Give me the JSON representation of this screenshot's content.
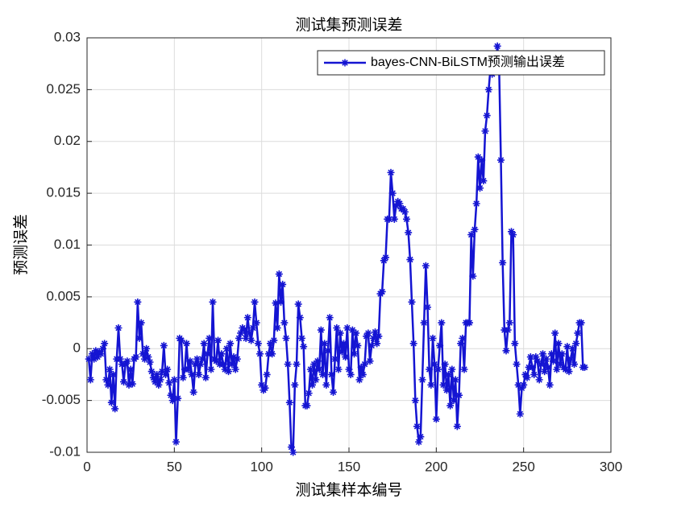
{
  "chart_data": {
    "type": "line",
    "title": "测试集预测误差",
    "xlabel": "测试集样本编号",
    "ylabel": "预测误差",
    "xlim": [
      0,
      300
    ],
    "xticks": [
      0,
      50,
      100,
      150,
      200,
      250,
      300
    ],
    "ylim": [
      -0.01,
      0.03
    ],
    "yticks": [
      -0.01,
      -0.005,
      0,
      0.005,
      0.01,
      0.015,
      0.02,
      0.025,
      0.03
    ],
    "grid": true,
    "legend": "upper right",
    "x": [
      1,
      2,
      3,
      4,
      5,
      6,
      7,
      8,
      9,
      10,
      11,
      12,
      13,
      14,
      15,
      16,
      17,
      18,
      19,
      20,
      21,
      22,
      23,
      24,
      25,
      26,
      27,
      28,
      29,
      30,
      31,
      32,
      33,
      34,
      35,
      36,
      37,
      38,
      39,
      40,
      41,
      42,
      43,
      44,
      45,
      46,
      47,
      48,
      49,
      50,
      51,
      52,
      53,
      54,
      55,
      56,
      57,
      58,
      59,
      60,
      61,
      62,
      63,
      64,
      65,
      66,
      67,
      68,
      69,
      70,
      71,
      72,
      73,
      74,
      75,
      76,
      77,
      78,
      79,
      80,
      81,
      82,
      83,
      84,
      85,
      86,
      87,
      88,
      89,
      90,
      91,
      92,
      93,
      94,
      95,
      96,
      97,
      98,
      99,
      100,
      101,
      102,
      103,
      104,
      105,
      106,
      107,
      108,
      109,
      110,
      111,
      112,
      113,
      114,
      115,
      116,
      117,
      118,
      119,
      120,
      121,
      122,
      123,
      124,
      125,
      126,
      127,
      128,
      129,
      130,
      131,
      132,
      133,
      134,
      135,
      136,
      137,
      138,
      139,
      140,
      141,
      142,
      143,
      144,
      145,
      146,
      147,
      148,
      149,
      150,
      151,
      152,
      153,
      154,
      155,
      156,
      157,
      158,
      159,
      160,
      161,
      162,
      163,
      164,
      165,
      166,
      167,
      168,
      169,
      170,
      171,
      172,
      173,
      174,
      175,
      176,
      177,
      178,
      179,
      180,
      181,
      182,
      183,
      184,
      185,
      186,
      187,
      188,
      189,
      190,
      191,
      192,
      193,
      194,
      195,
      196,
      197,
      198,
      199,
      200,
      201,
      202,
      203,
      204,
      205,
      206,
      207,
      208,
      209,
      210,
      211,
      212,
      213,
      214,
      215,
      216,
      217,
      218,
      219,
      220,
      221,
      222,
      223,
      224,
      225,
      226,
      227,
      228,
      229,
      230,
      231,
      232,
      233,
      234,
      235,
      236,
      237,
      238,
      239,
      240,
      241,
      242,
      243,
      244,
      245,
      246,
      247,
      248,
      249,
      250,
      251,
      252,
      253,
      254,
      255,
      256,
      257,
      258,
      259,
      260,
      261,
      262,
      263,
      264,
      265,
      266,
      267,
      268,
      269,
      270,
      271,
      272,
      273,
      274,
      275,
      276,
      277,
      278,
      279,
      280,
      281,
      282,
      283,
      284,
      285
    ],
    "series": [
      {
        "name": "bayes-CNN-BiLSTM预测输出误差",
        "color": "#1414d2",
        "values": [
          -0.001,
          -0.003,
          -0.0005,
          -0.001,
          -0.0002,
          -0.0008,
          -0.0003,
          -0.0005,
          0,
          0.0005,
          -0.003,
          -0.0035,
          -0.002,
          -0.0052,
          -0.0025,
          -0.0058,
          -0.001,
          0.002,
          -0.001,
          -0.0015,
          -0.0032,
          -0.0015,
          -0.0012,
          -0.0035,
          -0.002,
          -0.0034,
          -0.001,
          -0.0008,
          0.0045,
          0.001,
          0.0025,
          -0.0005,
          -0.001,
          0,
          -0.0008,
          -0.0013,
          -0.0022,
          -0.0028,
          -0.0032,
          -0.0025,
          -0.0035,
          -0.003,
          -0.0022,
          0.0003,
          -0.0025,
          -0.002,
          -0.0033,
          -0.0045,
          -0.005,
          -0.003,
          -0.009,
          -0.0048,
          0.001,
          0.0008,
          -0.0028,
          -0.002,
          0.0005,
          -0.002,
          -0.0012,
          -0.0025,
          -0.0042,
          -0.0015,
          -0.001,
          -0.0025,
          -0.0015,
          -0.001,
          0.0005,
          -0.0028,
          -0.0005,
          0.001,
          -0.002,
          0.0045,
          -0.001,
          -0.0012,
          0.0008,
          -0.0015,
          -0.0005,
          -0.0015,
          -0.002,
          0,
          -0.0022,
          0.0005,
          -0.0015,
          -0.0008,
          -0.002,
          -0.001,
          0.001,
          0.0015,
          0.002,
          0.0018,
          0.001,
          0.003,
          0.0015,
          0.0008,
          0.002,
          0.0045,
          0.0025,
          0.0005,
          -0.0005,
          -0.0035,
          -0.004,
          -0.0038,
          -0.0025,
          -0.0005,
          0.0005,
          -0.0005,
          0.0008,
          0.0044,
          0.002,
          0.0072,
          0.0045,
          0.0062,
          0.0025,
          0.001,
          -0.0015,
          -0.0052,
          -0.0095,
          -0.01,
          -0.0035,
          -0.0015,
          0.0043,
          0.003,
          0.001,
          0.0002,
          -0.0055,
          -0.0055,
          -0.0043,
          -0.002,
          -0.0035,
          -0.0015,
          -0.003,
          -0.0012,
          -0.002,
          0.0018,
          -0.0025,
          0.0005,
          -0.0035,
          -0.0002,
          0.003,
          -0.0025,
          -0.0042,
          -0.001,
          0.002,
          -0.002,
          0.0015,
          -0.0003,
          0.0005,
          -0.0008,
          0.002,
          -0.002,
          -0.0025,
          0.0018,
          -0.0005,
          0.0015,
          0.0003,
          -0.003,
          -0.0018,
          -0.0025,
          -0.0015,
          0.0012,
          0.0015,
          -0.0012,
          0.0003,
          0.001,
          0.0016,
          0.0005,
          0.0012,
          0.0053,
          0.0055,
          0.0085,
          0.0088,
          0.0125,
          0.0125,
          0.017,
          0.015,
          0.0125,
          0.0138,
          0.0142,
          0.014,
          0.0135,
          0.0135,
          0.0132,
          0.0125,
          0.0112,
          0.0086,
          0.0045,
          0.0005,
          -0.005,
          -0.0075,
          -0.009,
          -0.0085,
          -0.003,
          0.0025,
          0.008,
          0.004,
          -0.002,
          -0.0035,
          0.001,
          -0.0015,
          -0.0068,
          -0.002,
          0.0003,
          0.0025,
          -0.0035,
          -0.0015,
          -0.004,
          -0.0025,
          -0.0055,
          -0.002,
          -0.005,
          -0.003,
          -0.0075,
          -0.0045,
          0.0005,
          0.001,
          -0.002,
          0.0025,
          0.0025,
          0.0025,
          0.011,
          0.007,
          0.0115,
          0.014,
          0.0185,
          0.0155,
          0.0182,
          0.0162,
          0.021,
          0.0225,
          0.025,
          0.027,
          0.0265,
          0.028,
          0.0275,
          0.0292,
          0.027,
          0.0182,
          0.0083,
          0.0018,
          -0.0002,
          0.0018,
          0.0025,
          0.0113,
          0.011,
          0.0005,
          -0.0015,
          -0.0035,
          -0.0063,
          -0.0038,
          -0.0035,
          -0.0025,
          -0.0028,
          -0.0018,
          -0.0008,
          -0.0018,
          -0.0025,
          -0.0008,
          -0.0012,
          -0.003,
          -0.0015,
          -0.0005,
          -0.0022,
          -0.001,
          -0.0018,
          -0.0035,
          -0.0005,
          -0.0012,
          0.0015,
          -0.002,
          0.0005,
          -0.0015,
          -0.0005,
          -0.0018,
          -0.002,
          0.0002,
          -0.0022,
          -0.001,
          0,
          -0.0015,
          0.0005,
          0.0015,
          0.0025,
          0.0025,
          -0.0018,
          -0.0018
        ]
      }
    ]
  }
}
